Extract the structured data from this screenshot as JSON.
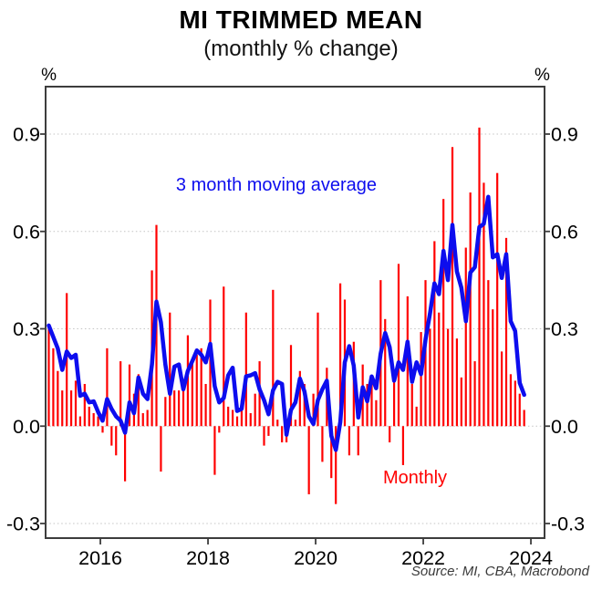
{
  "title": "MI TRIMMED MEAN",
  "subtitle": "(monthly % change)",
  "unit_left": "%",
  "unit_right": "%",
  "source": "Source: MI, CBA, Macrobond",
  "annotations": {
    "ma_label": "3 month moving average",
    "monthly_label": "Monthly"
  },
  "colors": {
    "monthly": "#ff0000",
    "moving_average": "#0d0dee",
    "grid": "#c4c4c4",
    "frame": "#3d3d3d",
    "tick_text": "#000000"
  },
  "chart_data": {
    "type": "bar",
    "title": "MI TRIMMED MEAN",
    "subtitle": "(monthly % change)",
    "ylabel": "%",
    "x_start": "2015-01",
    "x_end": "2023-11",
    "x_ticks": [
      2016,
      2018,
      2020,
      2022,
      2024
    ],
    "y_ticks": [
      "0.9",
      "0.6",
      "0.3",
      "0.0",
      "-0.3"
    ],
    "y_tick_values": [
      0.9,
      0.6,
      0.3,
      0.0,
      -0.3
    ],
    "ylim": [
      -0.345,
      1.045
    ],
    "grid": "dotted-horizontal",
    "legend_position": "inline-text-labels",
    "series": [
      {
        "name": "Monthly",
        "type": "bar",
        "values": [
          0.31,
          0.24,
          0.17,
          0.11,
          0.41,
          0.11,
          0.14,
          0.03,
          0.13,
          0.06,
          0.04,
          0.03,
          -0.02,
          0.24,
          -0.06,
          -0.09,
          0.2,
          -0.17,
          0.19,
          0.1,
          0.16,
          0.04,
          0.05,
          0.48,
          0.62,
          -0.14,
          0.09,
          0.35,
          0.11,
          0.11,
          0.12,
          0.28,
          0.2,
          0.22,
          0.24,
          0.13,
          0.39,
          -0.15,
          -0.02,
          0.43,
          0.06,
          0.05,
          0.03,
          0.08,
          0.35,
          0.04,
          0.1,
          0.2,
          -0.06,
          -0.03,
          0.42,
          0.02,
          -0.05,
          -0.05,
          0.25,
          0.02,
          0.17,
          0.13,
          -0.21,
          0.1,
          0.35,
          -0.11,
          0.18,
          -0.16,
          -0.24,
          0.44,
          0.39,
          -0.09,
          0.26,
          -0.09,
          0.19,
          0.13,
          0.14,
          0.08,
          0.45,
          0.33,
          -0.05,
          0.14,
          0.5,
          -0.12,
          0.4,
          0.13,
          0.06,
          0.29,
          0.45,
          0.3,
          0.57,
          0.35,
          0.7,
          0.3,
          0.86,
          0.27,
          0.15,
          0.55,
          0.72,
          0.2,
          0.92,
          0.75,
          0.45,
          0.36,
          0.78,
          0.23,
          0.58,
          0.16,
          0.14,
          0.1,
          0.05
        ]
      },
      {
        "name": "3 month moving average",
        "type": "line",
        "derived_from": "Monthly",
        "derivation": "trailing 3-month mean"
      }
    ]
  }
}
